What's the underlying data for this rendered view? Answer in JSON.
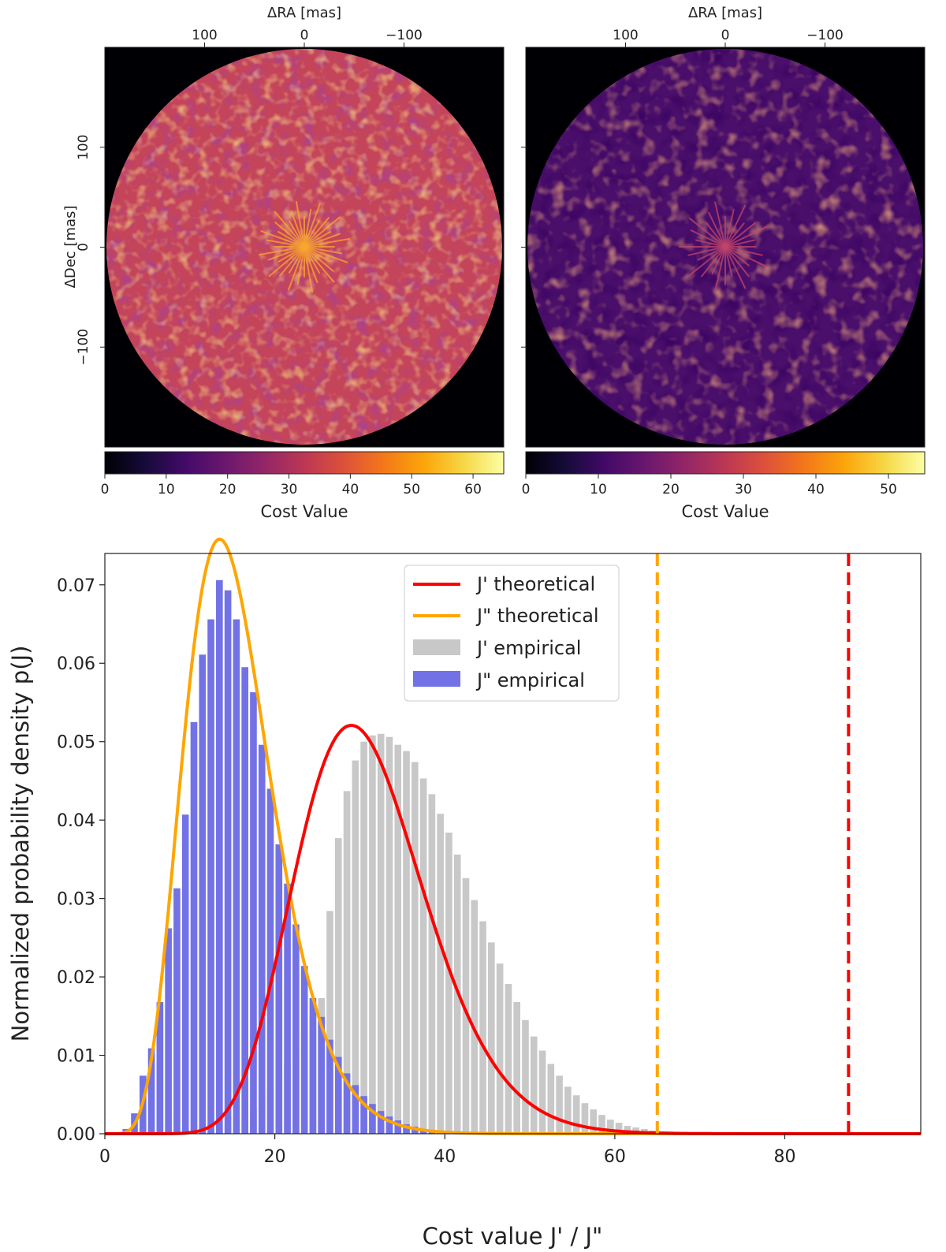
{
  "chart_data": [
    {
      "type": "heatmap",
      "panel": "left",
      "top_axis_label": "ΔRA [mas]",
      "top_ticks": [
        "100",
        "0",
        "−100"
      ],
      "left_axis_label": "ΔDec [mas]",
      "left_ticks": [
        "100",
        "0",
        "−100"
      ],
      "xlim": [
        200,
        -200
      ],
      "ylim": [
        -200,
        200
      ],
      "field_radius_mas": 200,
      "colorbar": {
        "label": "Cost Value",
        "min": 0,
        "max": 65,
        "ticks": [
          "0",
          "10",
          "20",
          "30",
          "40",
          "50",
          "60"
        ],
        "colormap": "inferno"
      },
      "typical_value": 40
    },
    {
      "type": "heatmap",
      "panel": "right",
      "top_axis_label": "ΔRA [mas]",
      "top_ticks": [
        "100",
        "0",
        "−100"
      ],
      "xlim": [
        200,
        -200
      ],
      "ylim": [
        -200,
        200
      ],
      "field_radius_mas": 200,
      "colorbar": {
        "label": "Cost Value",
        "min": 0,
        "max": 55,
        "ticks": [
          "0",
          "10",
          "20",
          "30",
          "40",
          "50"
        ],
        "colormap": "inferno"
      },
      "typical_value": 16
    },
    {
      "type": "bar",
      "subtype": "histogram-with-curves",
      "xlabel": "Cost value J' / J\"",
      "ylabel": "Normalized probability density p(J)",
      "xlim": [
        0,
        96
      ],
      "ylim": [
        0,
        0.074
      ],
      "xticks": [
        "0",
        "20",
        "40",
        "60",
        "80"
      ],
      "yticks": [
        "0.00",
        "0.01",
        "0.02",
        "0.03",
        "0.04",
        "0.05",
        "0.06",
        "0.07"
      ],
      "legend_position": "top-center",
      "legend": [
        {
          "label": "J' theoretical",
          "kind": "line",
          "color": "#ff0000"
        },
        {
          "label": "J\" theoretical",
          "kind": "line",
          "color": "#ffa500"
        },
        {
          "label": "J' empirical",
          "kind": "patch",
          "color": "#c8c8c8"
        },
        {
          "label": "J\" empirical",
          "kind": "patch",
          "color": "#7272e6"
        }
      ],
      "series": [
        {
          "name": "J' theoretical",
          "kind": "line",
          "distribution": "chi-squared",
          "dof": 31,
          "color": "#ff0000"
        },
        {
          "name": "J\" theoretical",
          "kind": "line",
          "distribution": "chi-squared",
          "dof": 15.5,
          "color": "#ffa500"
        },
        {
          "name": "J' empirical",
          "kind": "bars",
          "bin_width": 1,
          "bin_start": 0,
          "color": "#c8c8c8",
          "values": [
            0.0,
            0.0,
            0.0,
            0.0,
            0.0,
            0.0,
            0.0,
            0.0,
            0.0,
            0.0001,
            0.0001,
            0.0002,
            0.0004,
            0.0006,
            0.001,
            0.0015,
            0.0022,
            0.0031,
            0.0043,
            0.0057,
            0.0072,
            0.009,
            0.0108,
            0.0129,
            0.015,
            0.0173,
            0.0284,
            0.0377,
            0.0437,
            0.0476,
            0.05,
            0.0508,
            0.051,
            0.0506,
            0.0496,
            0.0488,
            0.0474,
            0.0453,
            0.0433,
            0.0408,
            0.0384,
            0.0356,
            0.0326,
            0.0298,
            0.0271,
            0.0244,
            0.0217,
            0.0191,
            0.0168,
            0.0145,
            0.0124,
            0.0106,
            0.0089,
            0.0074,
            0.006,
            0.0049,
            0.0039,
            0.0031,
            0.0024,
            0.0018,
            0.0014,
            0.001,
            0.0008,
            0.0006,
            0.0004,
            0.0003,
            0.0002,
            0.0001,
            0.0001,
            0.0001
          ]
        },
        {
          "name": "J\" empirical",
          "kind": "bars",
          "bin_width": 1,
          "bin_start": 0,
          "color": "#7272e6",
          "values": [
            0.0,
            0.0001,
            0.0006,
            0.0026,
            0.0074,
            0.0109,
            0.0168,
            0.0262,
            0.0313,
            0.0407,
            0.0525,
            0.0611,
            0.0656,
            0.0706,
            0.0693,
            0.0656,
            0.0595,
            0.0563,
            0.0496,
            0.044,
            0.0369,
            0.0319,
            0.0267,
            0.0214,
            0.0173,
            0.0149,
            0.012,
            0.0098,
            0.0077,
            0.0062,
            0.0048,
            0.0038,
            0.0029,
            0.0022,
            0.0017,
            0.0012,
            0.0009,
            0.0006,
            0.0005,
            0.0003,
            0.0002,
            0.0001
          ]
        }
      ],
      "vlines": [
        {
          "x": 65,
          "color": "#ffa500",
          "style": "dashed"
        },
        {
          "x": 87.5,
          "color": "#ff0000",
          "style": "dashed"
        }
      ]
    }
  ]
}
